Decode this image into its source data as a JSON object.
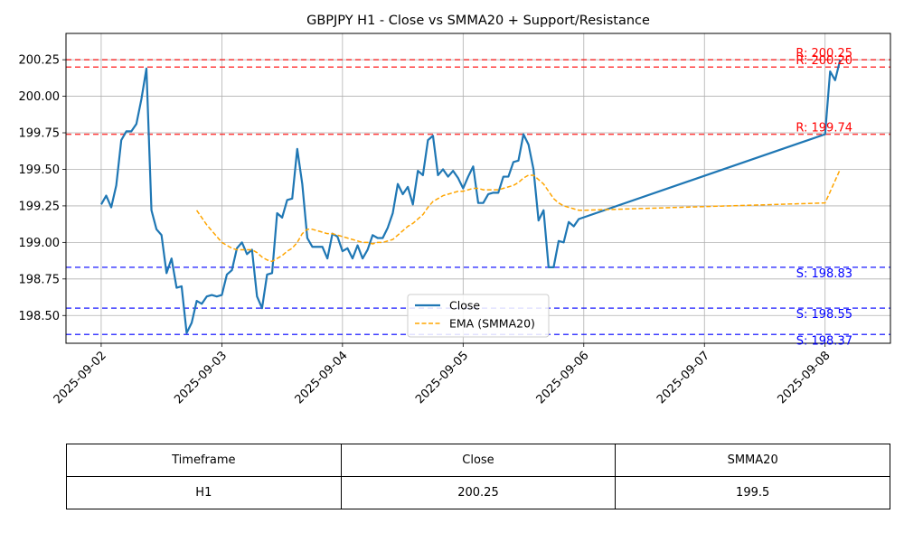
{
  "chart_data": {
    "type": "line",
    "title": "GBPJPY H1 - Close vs SMMA20 + Support/Resistance",
    "xlabel": "",
    "ylabel": "",
    "x_range": [
      "2025-09-01T17:00",
      "2025-09-08T13:00"
    ],
    "ylim": [
      198.31,
      200.43
    ],
    "grid": true,
    "legend_position": "lower-center",
    "x_ticks": [
      "2025-09-02",
      "2025-09-03",
      "2025-09-04",
      "2025-09-05",
      "2025-09-06",
      "2025-09-07",
      "2025-09-08"
    ],
    "y_ticks": [
      "198.50",
      "198.75",
      "199.00",
      "199.25",
      "199.50",
      "199.75",
      "200.00",
      "200.25"
    ],
    "series": [
      {
        "name": "Close",
        "color": "#1f77b4",
        "style": "solid",
        "points": [
          [
            "2025-09-02T00:00",
            199.26
          ],
          [
            "2025-09-02T01:00",
            199.32
          ],
          [
            "2025-09-02T02:00",
            199.24
          ],
          [
            "2025-09-02T03:00",
            199.39
          ],
          [
            "2025-09-02T04:00",
            199.7
          ],
          [
            "2025-09-02T05:00",
            199.76
          ],
          [
            "2025-09-02T06:00",
            199.76
          ],
          [
            "2025-09-02T07:00",
            199.81
          ],
          [
            "2025-09-02T08:00",
            199.98
          ],
          [
            "2025-09-02T09:00",
            200.19
          ],
          [
            "2025-09-02T10:00",
            199.22
          ],
          [
            "2025-09-02T11:00",
            199.09
          ],
          [
            "2025-09-02T12:00",
            199.05
          ],
          [
            "2025-09-02T13:00",
            198.79
          ],
          [
            "2025-09-02T14:00",
            198.89
          ],
          [
            "2025-09-02T15:00",
            198.69
          ],
          [
            "2025-09-02T16:00",
            198.7
          ],
          [
            "2025-09-02T17:00",
            198.38
          ],
          [
            "2025-09-02T18:00",
            198.45
          ],
          [
            "2025-09-02T19:00",
            198.6
          ],
          [
            "2025-09-02T20:00",
            198.58
          ],
          [
            "2025-09-02T21:00",
            198.63
          ],
          [
            "2025-09-02T22:00",
            198.64
          ],
          [
            "2025-09-02T23:00",
            198.63
          ],
          [
            "2025-09-03T00:00",
            198.64
          ],
          [
            "2025-09-03T01:00",
            198.78
          ],
          [
            "2025-09-03T02:00",
            198.81
          ],
          [
            "2025-09-03T03:00",
            198.96
          ],
          [
            "2025-09-03T04:00",
            199.0
          ],
          [
            "2025-09-03T05:00",
            198.92
          ],
          [
            "2025-09-03T06:00",
            198.95
          ],
          [
            "2025-09-03T07:00",
            198.63
          ],
          [
            "2025-09-03T08:00",
            198.55
          ],
          [
            "2025-09-03T09:00",
            198.78
          ],
          [
            "2025-09-03T10:00",
            198.79
          ],
          [
            "2025-09-03T11:00",
            199.2
          ],
          [
            "2025-09-03T12:00",
            199.17
          ],
          [
            "2025-09-03T13:00",
            199.29
          ],
          [
            "2025-09-03T14:00",
            199.3
          ],
          [
            "2025-09-03T15:00",
            199.64
          ],
          [
            "2025-09-03T16:00",
            199.4
          ],
          [
            "2025-09-03T17:00",
            199.03
          ],
          [
            "2025-09-03T18:00",
            198.97
          ],
          [
            "2025-09-03T19:00",
            198.97
          ],
          [
            "2025-09-03T20:00",
            198.97
          ],
          [
            "2025-09-03T21:00",
            198.89
          ],
          [
            "2025-09-03T22:00",
            199.06
          ],
          [
            "2025-09-03T23:00",
            199.04
          ],
          [
            "2025-09-04T00:00",
            198.94
          ],
          [
            "2025-09-04T01:00",
            198.96
          ],
          [
            "2025-09-04T02:00",
            198.89
          ],
          [
            "2025-09-04T03:00",
            198.98
          ],
          [
            "2025-09-04T04:00",
            198.89
          ],
          [
            "2025-09-04T05:00",
            198.95
          ],
          [
            "2025-09-04T06:00",
            199.05
          ],
          [
            "2025-09-04T07:00",
            199.03
          ],
          [
            "2025-09-04T08:00",
            199.03
          ],
          [
            "2025-09-04T09:00",
            199.1
          ],
          [
            "2025-09-04T10:00",
            199.2
          ],
          [
            "2025-09-04T11:00",
            199.4
          ],
          [
            "2025-09-04T12:00",
            199.33
          ],
          [
            "2025-09-04T13:00",
            199.38
          ],
          [
            "2025-09-04T14:00",
            199.26
          ],
          [
            "2025-09-04T15:00",
            199.49
          ],
          [
            "2025-09-04T16:00",
            199.46
          ],
          [
            "2025-09-04T17:00",
            199.7
          ],
          [
            "2025-09-04T18:00",
            199.73
          ],
          [
            "2025-09-04T19:00",
            199.46
          ],
          [
            "2025-09-04T20:00",
            199.5
          ],
          [
            "2025-09-04T21:00",
            199.45
          ],
          [
            "2025-09-04T22:00",
            199.49
          ],
          [
            "2025-09-04T23:00",
            199.44
          ],
          [
            "2025-09-05T00:00",
            199.37
          ],
          [
            "2025-09-05T01:00",
            199.45
          ],
          [
            "2025-09-05T02:00",
            199.52
          ],
          [
            "2025-09-05T03:00",
            199.27
          ],
          [
            "2025-09-05T04:00",
            199.27
          ],
          [
            "2025-09-05T05:00",
            199.33
          ],
          [
            "2025-09-05T06:00",
            199.34
          ],
          [
            "2025-09-05T07:00",
            199.34
          ],
          [
            "2025-09-05T08:00",
            199.45
          ],
          [
            "2025-09-05T09:00",
            199.45
          ],
          [
            "2025-09-05T10:00",
            199.55
          ],
          [
            "2025-09-05T11:00",
            199.56
          ],
          [
            "2025-09-05T12:00",
            199.74
          ],
          [
            "2025-09-05T13:00",
            199.67
          ],
          [
            "2025-09-05T14:00",
            199.5
          ],
          [
            "2025-09-05T15:00",
            199.15
          ],
          [
            "2025-09-05T16:00",
            199.22
          ],
          [
            "2025-09-05T17:00",
            198.83
          ],
          [
            "2025-09-05T18:00",
            198.83
          ],
          [
            "2025-09-05T19:00",
            199.01
          ],
          [
            "2025-09-05T20:00",
            199.0
          ],
          [
            "2025-09-05T21:00",
            199.14
          ],
          [
            "2025-09-05T22:00",
            199.11
          ],
          [
            "2025-09-05T23:00",
            199.16
          ],
          [
            "2025-09-08T00:00",
            199.74
          ],
          [
            "2025-09-08T01:00",
            200.17
          ],
          [
            "2025-09-08T02:00",
            200.11
          ],
          [
            "2025-09-08T03:00",
            200.25
          ]
        ]
      },
      {
        "name": "EMA (SMMA20)",
        "color": "#ffa500",
        "style": "dashed",
        "points": [
          [
            "2025-09-02T19:00",
            199.22
          ],
          [
            "2025-09-02T20:00",
            199.17
          ],
          [
            "2025-09-02T21:00",
            199.12
          ],
          [
            "2025-09-02T22:00",
            199.08
          ],
          [
            "2025-09-02T23:00",
            199.04
          ],
          [
            "2025-09-03T00:00",
            199.0
          ],
          [
            "2025-09-03T01:00",
            198.98
          ],
          [
            "2025-09-03T02:00",
            198.96
          ],
          [
            "2025-09-03T03:00",
            198.95
          ],
          [
            "2025-09-03T04:00",
            198.95
          ],
          [
            "2025-09-03T05:00",
            198.95
          ],
          [
            "2025-09-03T06:00",
            198.95
          ],
          [
            "2025-09-03T07:00",
            198.93
          ],
          [
            "2025-09-03T08:00",
            198.9
          ],
          [
            "2025-09-03T09:00",
            198.88
          ],
          [
            "2025-09-03T10:00",
            198.87
          ],
          [
            "2025-09-03T11:00",
            198.89
          ],
          [
            "2025-09-03T12:00",
            198.91
          ],
          [
            "2025-09-03T13:00",
            198.94
          ],
          [
            "2025-09-03T14:00",
            198.96
          ],
          [
            "2025-09-03T15:00",
            199.0
          ],
          [
            "2025-09-03T16:00",
            199.06
          ],
          [
            "2025-09-03T17:00",
            199.09
          ],
          [
            "2025-09-03T18:00",
            199.09
          ],
          [
            "2025-09-03T19:00",
            199.08
          ],
          [
            "2025-09-03T20:00",
            199.07
          ],
          [
            "2025-09-03T21:00",
            199.06
          ],
          [
            "2025-09-03T22:00",
            199.06
          ],
          [
            "2025-09-03T23:00",
            199.05
          ],
          [
            "2025-09-04T00:00",
            199.04
          ],
          [
            "2025-09-04T01:00",
            199.03
          ],
          [
            "2025-09-04T02:00",
            199.02
          ],
          [
            "2025-09-04T03:00",
            199.01
          ],
          [
            "2025-09-04T04:00",
            199.0
          ],
          [
            "2025-09-04T05:00",
            199.0
          ],
          [
            "2025-09-04T06:00",
            198.99
          ],
          [
            "2025-09-04T07:00",
            199.0
          ],
          [
            "2025-09-04T08:00",
            199.0
          ],
          [
            "2025-09-04T09:00",
            199.01
          ],
          [
            "2025-09-04T10:00",
            199.02
          ],
          [
            "2025-09-04T11:00",
            199.05
          ],
          [
            "2025-09-04T12:00",
            199.08
          ],
          [
            "2025-09-04T13:00",
            199.11
          ],
          [
            "2025-09-04T14:00",
            199.13
          ],
          [
            "2025-09-04T15:00",
            199.16
          ],
          [
            "2025-09-04T16:00",
            199.19
          ],
          [
            "2025-09-04T17:00",
            199.24
          ],
          [
            "2025-09-04T18:00",
            199.28
          ],
          [
            "2025-09-04T19:00",
            199.3
          ],
          [
            "2025-09-04T20:00",
            199.32
          ],
          [
            "2025-09-04T21:00",
            199.33
          ],
          [
            "2025-09-04T22:00",
            199.34
          ],
          [
            "2025-09-04T23:00",
            199.35
          ],
          [
            "2025-09-05T00:00",
            199.35
          ],
          [
            "2025-09-05T01:00",
            199.36
          ],
          [
            "2025-09-05T02:00",
            199.37
          ],
          [
            "2025-09-05T03:00",
            199.37
          ],
          [
            "2025-09-05T04:00",
            199.36
          ],
          [
            "2025-09-05T05:00",
            199.36
          ],
          [
            "2025-09-05T06:00",
            199.36
          ],
          [
            "2025-09-05T07:00",
            199.36
          ],
          [
            "2025-09-05T08:00",
            199.37
          ],
          [
            "2025-09-05T09:00",
            199.38
          ],
          [
            "2025-09-05T10:00",
            199.39
          ],
          [
            "2025-09-05T11:00",
            199.41
          ],
          [
            "2025-09-05T12:00",
            199.44
          ],
          [
            "2025-09-05T13:00",
            199.46
          ],
          [
            "2025-09-05T14:00",
            199.46
          ],
          [
            "2025-09-05T15:00",
            199.43
          ],
          [
            "2025-09-05T16:00",
            199.4
          ],
          [
            "2025-09-05T17:00",
            199.35
          ],
          [
            "2025-09-05T18:00",
            199.3
          ],
          [
            "2025-09-05T19:00",
            199.27
          ],
          [
            "2025-09-05T20:00",
            199.25
          ],
          [
            "2025-09-05T21:00",
            199.24
          ],
          [
            "2025-09-05T22:00",
            199.23
          ],
          [
            "2025-09-05T23:00",
            199.22
          ],
          [
            "2025-09-06T00:00",
            199.22
          ],
          [
            "2025-09-07T00:00",
            199.245
          ],
          [
            "2025-09-08T00:00",
            199.27
          ],
          [
            "2025-09-08T03:00",
            199.5
          ]
        ]
      }
    ],
    "levels": [
      {
        "kind": "resistance",
        "value": 200.25,
        "label": "R: 200.25",
        "color": "#ff0000"
      },
      {
        "kind": "resistance",
        "value": 200.2,
        "label": "R: 200.20",
        "color": "#ff0000"
      },
      {
        "kind": "resistance",
        "value": 199.74,
        "label": "R: 199.74",
        "color": "#ff0000"
      },
      {
        "kind": "support",
        "value": 198.83,
        "label": "S: 198.83",
        "color": "#0000ff"
      },
      {
        "kind": "support",
        "value": 198.55,
        "label": "S: 198.55",
        "color": "#0000ff"
      },
      {
        "kind": "support",
        "value": 198.37,
        "label": "S: 198.37",
        "color": "#0000ff"
      }
    ]
  },
  "table": {
    "headers": [
      "Timeframe",
      "Close",
      "SMMA20"
    ],
    "rows": [
      [
        "H1",
        "200.25",
        "199.5"
      ]
    ]
  }
}
